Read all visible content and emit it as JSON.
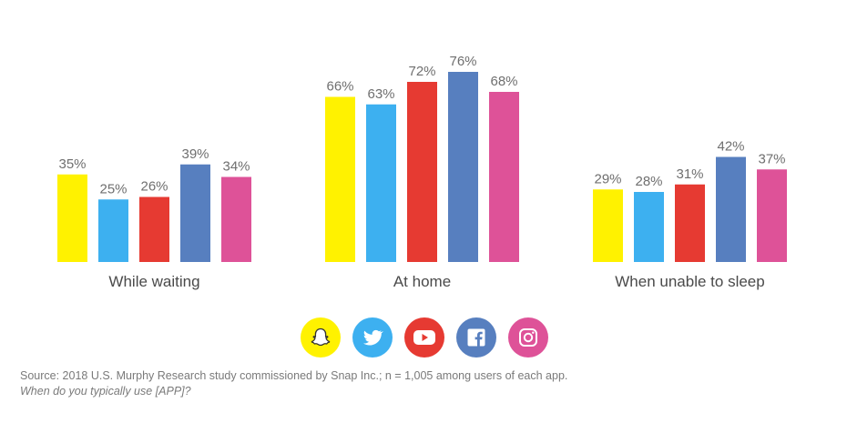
{
  "chart_data": {
    "type": "bar",
    "categories": [
      "While waiting",
      "At home",
      "When unable to sleep"
    ],
    "series": [
      {
        "name": "Snapchat",
        "color": "#fff200",
        "values": [
          35,
          66,
          29
        ],
        "labels": [
          "35%",
          "66%",
          "29%"
        ]
      },
      {
        "name": "Twitter",
        "color": "#3db0f0",
        "values": [
          25,
          63,
          28
        ],
        "labels": [
          "25%",
          "63%",
          "28%"
        ]
      },
      {
        "name": "YouTube",
        "color": "#e63a32",
        "values": [
          26,
          72,
          31
        ],
        "labels": [
          "26%",
          "72%",
          "31%"
        ]
      },
      {
        "name": "Facebook",
        "color": "#577fbf",
        "values": [
          39,
          76,
          42
        ],
        "labels": [
          "39%",
          "76%",
          "42%"
        ]
      },
      {
        "name": "Instagram",
        "color": "#de5298",
        "values": [
          34,
          68,
          37
        ],
        "labels": [
          "34%",
          "68%",
          "37%"
        ]
      }
    ],
    "legend_position": "bottom",
    "legend_icons": [
      "snapchat-ghost-icon",
      "twitter-bird-icon",
      "youtube-play-icon",
      "facebook-f-icon",
      "instagram-camera-icon"
    ],
    "grid": false,
    "ylim": [
      0,
      100
    ]
  },
  "footer": {
    "source": "Source: 2018 U.S. Murphy Research study commissioned by Snap Inc.; n = 1,005 among users of each app.",
    "question": "When do you typically use [APP]?"
  }
}
